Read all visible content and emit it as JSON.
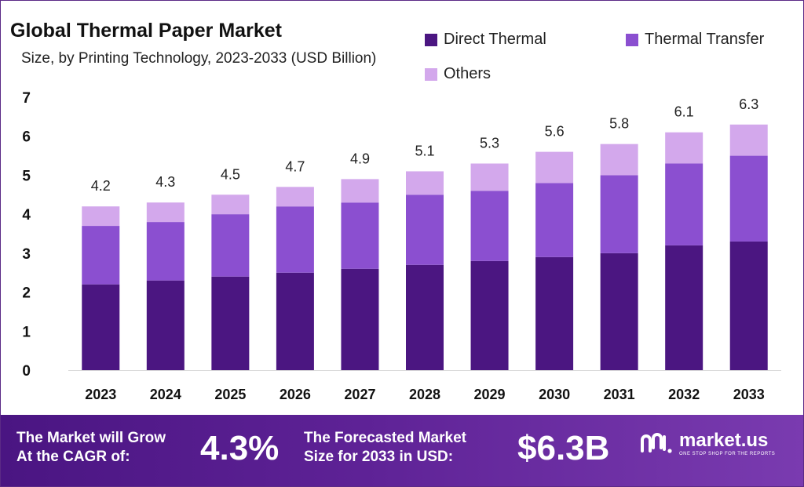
{
  "header": {
    "title": "Global Thermal Paper Market",
    "subtitle": "Size, by Printing Technology, 2023-2033 (USD Billion)"
  },
  "legend": {
    "direct_thermal": "Direct Thermal",
    "thermal_transfer": "Thermal Transfer",
    "others": "Others"
  },
  "chart_data": {
    "type": "bar",
    "stacked": true,
    "title": "Global Thermal Paper Market",
    "subtitle": "Size, by Printing Technology, 2023-2033 (USD Billion)",
    "categories": [
      "2023",
      "2024",
      "2025",
      "2026",
      "2027",
      "2028",
      "2029",
      "2030",
      "2031",
      "2032",
      "2033"
    ],
    "series": [
      {
        "name": "Direct Thermal",
        "color": "#4b1681",
        "values": [
          2.2,
          2.3,
          2.4,
          2.5,
          2.6,
          2.7,
          2.8,
          2.9,
          3.0,
          3.2,
          3.3
        ]
      },
      {
        "name": "Thermal Transfer",
        "color": "#8b4fd0",
        "values": [
          1.5,
          1.5,
          1.6,
          1.7,
          1.7,
          1.8,
          1.8,
          1.9,
          2.0,
          2.1,
          2.2
        ]
      },
      {
        "name": "Others",
        "color": "#d3a8ec",
        "values": [
          0.5,
          0.5,
          0.5,
          0.5,
          0.6,
          0.6,
          0.7,
          0.8,
          0.8,
          0.8,
          0.8
        ]
      }
    ],
    "totals": [
      4.2,
      4.3,
      4.5,
      4.7,
      4.9,
      5.1,
      5.3,
      5.6,
      5.8,
      6.1,
      6.3
    ],
    "total_labels": [
      "4.2",
      "4.3",
      "4.5",
      "4.7",
      "4.9",
      "5.1",
      "5.3",
      "5.6",
      "5.8",
      "6.1",
      "6.3"
    ],
    "ylim": [
      0,
      7
    ],
    "yticks": [
      "0",
      "1",
      "2",
      "3",
      "4",
      "5",
      "6",
      "7"
    ],
    "xlabel": "",
    "ylabel": "",
    "grid": false,
    "legend_position": "top-right"
  },
  "footer": {
    "cagr_text_line1": "The Market will Grow",
    "cagr_text_line2": "At the CAGR of:",
    "cagr_value": "4.3%",
    "forecast_text_line1": "The Forecasted Market",
    "forecast_text_line2": "Size for 2033 in USD:",
    "forecast_value": "$6.3B",
    "logo_name": "market.us",
    "logo_tagline": "ONE STOP SHOP FOR THE REPORTS"
  }
}
